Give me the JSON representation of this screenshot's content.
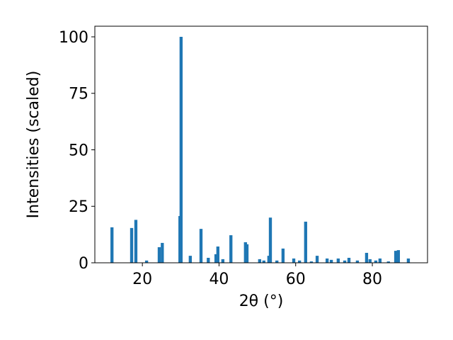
{
  "chart_data": {
    "type": "bar",
    "color": "#1f77b4",
    "bar_width": 0.8,
    "xlabel": "2θ (°)",
    "ylabel": "Intensities (scaled)",
    "x": [
      12.07,
      17.2,
      18.3,
      21.1,
      24.4,
      25.2,
      29.8,
      30.1,
      32.5,
      35.3,
      37.2,
      39.2,
      39.7,
      41.0,
      43.1,
      46.9,
      47.3,
      50.6,
      51.7,
      53.0,
      53.4,
      55.1,
      56.7,
      59.5,
      61.0,
      62.6,
      64.1,
      65.6,
      68.2,
      69.3,
      71.1,
      72.8,
      73.9,
      76.1,
      78.5,
      79.4,
      80.9,
      82.0,
      84.2,
      86.1,
      86.8,
      89.4
    ],
    "values": [
      15.7,
      15.4,
      19,
      1,
      6.9,
      8.8,
      20.7,
      100,
      3.1,
      15,
      2.2,
      3.8,
      7.2,
      1.6,
      12.2,
      9.1,
      8.2,
      1.6,
      1,
      3.1,
      20,
      1,
      6.3,
      1.9,
      1,
      18.2,
      0.6,
      3.1,
      1.9,
      1.3,
      1.9,
      1,
      2.2,
      1,
      4.4,
      1.6,
      1,
      1.9,
      0.6,
      5.3,
      5.6,
      1.9
    ],
    "xlim": [
      7.6,
      94.4
    ],
    "ylim": [
      0,
      104.7
    ],
    "xticks": [
      20,
      40,
      60,
      80
    ],
    "yticks": [
      0,
      25,
      50,
      75,
      100
    ]
  }
}
